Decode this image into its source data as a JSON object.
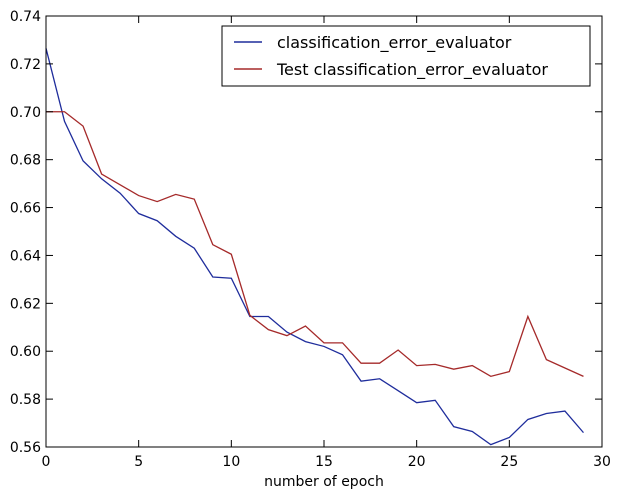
{
  "chart_data": {
    "type": "line",
    "title": "",
    "xlabel": "number of epoch",
    "ylabel": "",
    "xlim": [
      0,
      30
    ],
    "ylim": [
      0.56,
      0.74
    ],
    "xticks": [
      0,
      5,
      10,
      15,
      20,
      25,
      30
    ],
    "yticks": [
      0.56,
      0.58,
      0.6,
      0.62,
      0.64,
      0.66,
      0.68,
      0.7,
      0.72,
      0.74
    ],
    "xtick_labels": [
      "0",
      "5",
      "10",
      "15",
      "20",
      "25",
      "30"
    ],
    "ytick_labels": [
      "0.56",
      "0.58",
      "0.60",
      "0.62",
      "0.64",
      "0.66",
      "0.68",
      "0.70",
      "0.72",
      "0.74"
    ],
    "grid": false,
    "legend_position": "top-right",
    "x": [
      0,
      1,
      2,
      3,
      4,
      5,
      6,
      7,
      8,
      9,
      10,
      11,
      12,
      13,
      14,
      15,
      16,
      17,
      18,
      19,
      20,
      21,
      22,
      23,
      24,
      25,
      26,
      27,
      28,
      29
    ],
    "series": [
      {
        "name": "classification_error_evaluator",
        "color": "#1f2d9c",
        "values": [
          0.7265,
          0.696,
          0.6795,
          0.672,
          0.666,
          0.6575,
          0.6545,
          0.648,
          0.643,
          0.631,
          0.6305,
          0.6145,
          0.6145,
          0.608,
          0.604,
          0.602,
          0.5985,
          0.5875,
          0.5885,
          0.5835,
          0.5785,
          0.5795,
          0.5685,
          0.5665,
          0.561,
          0.564,
          0.5715,
          0.574,
          0.575,
          0.566
        ]
      },
      {
        "name": "Test classification_error_evaluator",
        "color": "#a52a2a",
        "values": [
          0.7,
          0.7,
          0.694,
          0.674,
          0.6695,
          0.665,
          0.6625,
          0.6655,
          0.6635,
          0.6445,
          0.6405,
          0.615,
          0.609,
          0.6065,
          0.6105,
          0.6035,
          0.6035,
          0.595,
          0.595,
          0.6005,
          0.594,
          0.5945,
          0.5925,
          0.594,
          0.5895,
          0.5915,
          0.6145,
          0.5965,
          0.593,
          0.5895
        ]
      }
    ]
  }
}
